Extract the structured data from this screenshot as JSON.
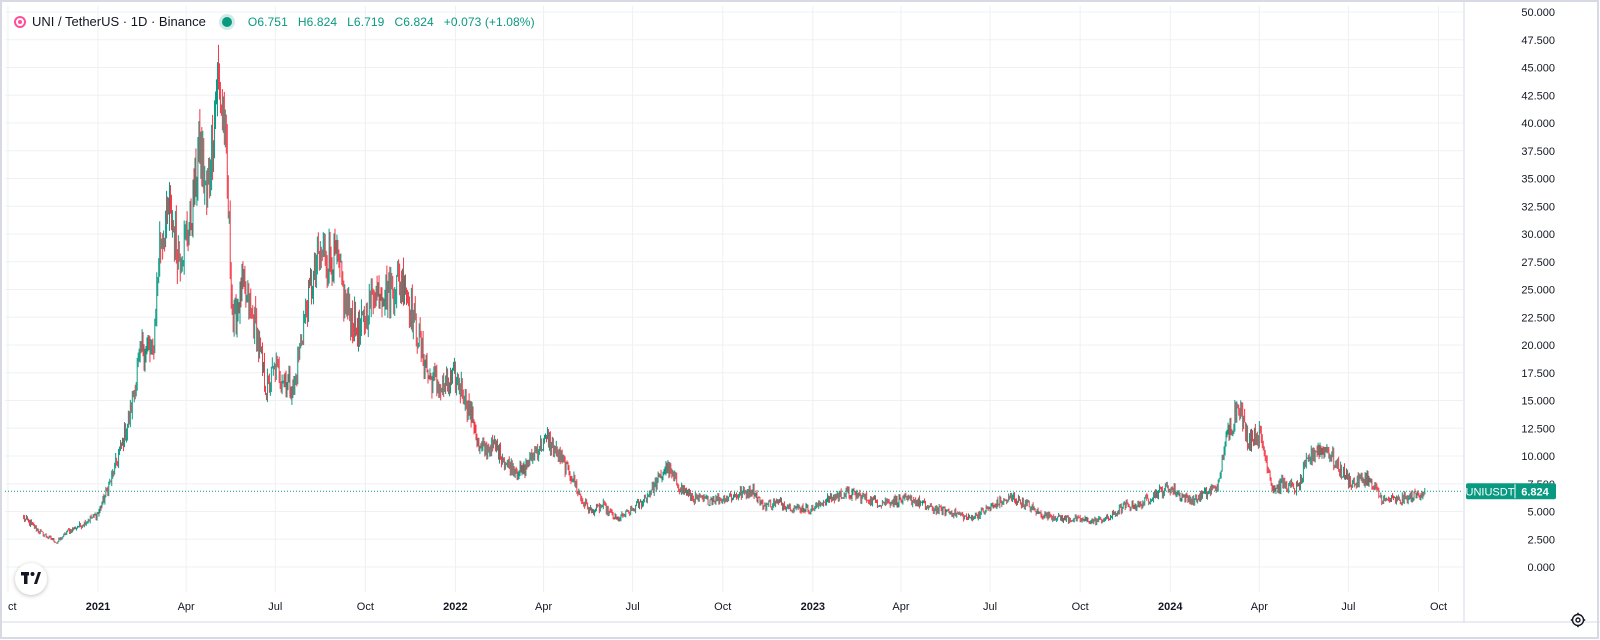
{
  "header": {
    "symbol": "UNI / TetherUS · 1D · Binance",
    "open": "O6.751",
    "high": "H6.824",
    "low": "L6.719",
    "close": "C6.824",
    "change": "+0.073 (+1.08%)"
  },
  "price_label": {
    "ticker": "UNIUSDT",
    "value": "6.824"
  },
  "colors": {
    "up": "#089981",
    "down": "#f23645",
    "grid": "#eef0f4",
    "axis_text": "#131722",
    "border": "#d7d9e4"
  },
  "icons": {
    "logo": "tradingview-logo-icon",
    "settings": "settings-gear-icon",
    "symbol": "uni-logo-icon"
  },
  "chart_data": {
    "type": "candlestick",
    "title": "UNI / TetherUS · 1D · Binance",
    "ylim": [
      0,
      50
    ],
    "y_ticks": [
      "50.000",
      "47.500",
      "45.000",
      "42.500",
      "40.000",
      "37.500",
      "35.000",
      "32.500",
      "30.000",
      "27.500",
      "25.000",
      "22.500",
      "20.000",
      "17.500",
      "15.000",
      "12.500",
      "10.000",
      "7.500",
      "5.000",
      "2.500",
      "0.000"
    ],
    "x_ticks": [
      "ct",
      "2021",
      "Apr",
      "Jul",
      "Oct",
      "2022",
      "Apr",
      "Jul",
      "Oct",
      "2023",
      "Apr",
      "Jul",
      "Oct",
      "2024",
      "Apr",
      "Jul",
      "Oct"
    ],
    "x_tick_dates": [
      "2020-10-01",
      "2021-01-01",
      "2021-04-01",
      "2021-07-01",
      "2021-10-01",
      "2022-01-01",
      "2022-04-01",
      "2022-07-01",
      "2022-10-01",
      "2023-01-01",
      "2023-04-01",
      "2023-07-01",
      "2023-10-01",
      "2024-01-01",
      "2024-04-01",
      "2024-07-01",
      "2024-10-01"
    ],
    "start_date": "2020-10-17",
    "end_date": "2024-09-17",
    "last_price": 6.824,
    "price_path": [
      [
        "2020-10-17",
        4.4
      ],
      [
        "2020-11-05",
        3.0
      ],
      [
        "2020-11-20",
        2.2
      ],
      [
        "2020-12-01",
        3.2
      ],
      [
        "2020-12-15",
        3.8
      ],
      [
        "2021-01-01",
        4.8
      ],
      [
        "2021-01-15",
        8.0
      ],
      [
        "2021-02-01",
        13.0
      ],
      [
        "2021-02-15",
        20.0
      ],
      [
        "2021-02-26",
        19.0
      ],
      [
        "2021-03-05",
        29.0
      ],
      [
        "2021-03-15",
        32.0
      ],
      [
        "2021-03-25",
        28.0
      ],
      [
        "2021-04-05",
        31.0
      ],
      [
        "2021-04-15",
        38.0
      ],
      [
        "2021-04-22",
        33.0
      ],
      [
        "2021-05-03",
        44.0
      ],
      [
        "2021-05-10",
        40.0
      ],
      [
        "2021-05-19",
        22.0
      ],
      [
        "2021-05-28",
        25.0
      ],
      [
        "2021-06-10",
        22.0
      ],
      [
        "2021-06-22",
        16.0
      ],
      [
        "2021-07-01",
        18.0
      ],
      [
        "2021-07-20",
        16.0
      ],
      [
        "2021-08-01",
        23.0
      ],
      [
        "2021-08-15",
        28.0
      ],
      [
        "2021-09-01",
        28.0
      ],
      [
        "2021-09-10",
        24.0
      ],
      [
        "2021-09-25",
        21.0
      ],
      [
        "2021-10-10",
        25.0
      ],
      [
        "2021-10-25",
        25.0
      ],
      [
        "2021-11-10",
        26.0
      ],
      [
        "2021-11-20",
        22.0
      ],
      [
        "2021-12-05",
        17.0
      ],
      [
        "2021-12-20",
        16.0
      ],
      [
        "2022-01-01",
        17.0
      ],
      [
        "2022-01-10",
        15.5
      ],
      [
        "2022-01-20",
        13.0
      ],
      [
        "2022-01-25",
        10.5
      ],
      [
        "2022-02-10",
        11.0
      ],
      [
        "2022-02-25",
        9.0
      ],
      [
        "2022-03-10",
        8.5
      ],
      [
        "2022-03-25",
        10.5
      ],
      [
        "2022-04-05",
        11.5
      ],
      [
        "2022-04-20",
        9.5
      ],
      [
        "2022-05-01",
        8.0
      ],
      [
        "2022-05-10",
        6.0
      ],
      [
        "2022-05-20",
        5.0
      ],
      [
        "2022-06-01",
        5.5
      ],
      [
        "2022-06-15",
        4.2
      ],
      [
        "2022-06-25",
        4.8
      ],
      [
        "2022-07-10",
        5.8
      ],
      [
        "2022-07-25",
        7.5
      ],
      [
        "2022-08-05",
        9.0
      ],
      [
        "2022-08-20",
        7.0
      ],
      [
        "2022-09-01",
        6.2
      ],
      [
        "2022-09-15",
        6.0
      ],
      [
        "2022-10-01",
        6.2
      ],
      [
        "2022-10-15",
        6.5
      ],
      [
        "2022-11-01",
        7.0
      ],
      [
        "2022-11-10",
        5.5
      ],
      [
        "2022-11-25",
        5.8
      ],
      [
        "2022-12-15",
        5.3
      ],
      [
        "2023-01-01",
        5.3
      ],
      [
        "2023-01-15",
        6.0
      ],
      [
        "2023-02-01",
        6.6
      ],
      [
        "2023-02-15",
        6.5
      ],
      [
        "2023-03-10",
        5.8
      ],
      [
        "2023-03-25",
        6.0
      ],
      [
        "2023-04-15",
        6.0
      ],
      [
        "2023-05-01",
        5.3
      ],
      [
        "2023-05-20",
        5.0
      ],
      [
        "2023-06-10",
        4.4
      ],
      [
        "2023-06-25",
        5.0
      ],
      [
        "2023-07-10",
        5.8
      ],
      [
        "2023-07-25",
        6.2
      ],
      [
        "2023-08-10",
        5.5
      ],
      [
        "2023-08-20",
        4.8
      ],
      [
        "2023-09-10",
        4.4
      ],
      [
        "2023-09-25",
        4.3
      ],
      [
        "2023-10-15",
        4.1
      ],
      [
        "2023-11-01",
        4.5
      ],
      [
        "2023-11-15",
        5.5
      ],
      [
        "2023-12-01",
        5.6
      ],
      [
        "2023-12-15",
        6.5
      ],
      [
        "2024-01-01",
        7.2
      ],
      [
        "2024-01-10",
        6.5
      ],
      [
        "2024-01-25",
        6.0
      ],
      [
        "2024-02-10",
        6.8
      ],
      [
        "2024-02-20",
        7.5
      ],
      [
        "2024-02-25",
        11.0
      ],
      [
        "2024-03-05",
        13.0
      ],
      [
        "2024-03-10",
        15.0
      ],
      [
        "2024-03-20",
        11.5
      ],
      [
        "2024-04-01",
        12.0
      ],
      [
        "2024-04-10",
        9.0
      ],
      [
        "2024-04-15",
        7.0
      ],
      [
        "2024-04-25",
        7.5
      ],
      [
        "2024-05-10",
        7.0
      ],
      [
        "2024-05-20",
        9.5
      ],
      [
        "2024-05-28",
        10.5
      ],
      [
        "2024-06-10",
        10.5
      ],
      [
        "2024-06-20",
        9.0
      ],
      [
        "2024-07-05",
        7.5
      ],
      [
        "2024-07-20",
        8.0
      ],
      [
        "2024-08-05",
        6.0
      ],
      [
        "2024-08-20",
        6.0
      ],
      [
        "2024-09-01",
        6.2
      ],
      [
        "2024-09-17",
        6.824
      ]
    ]
  }
}
